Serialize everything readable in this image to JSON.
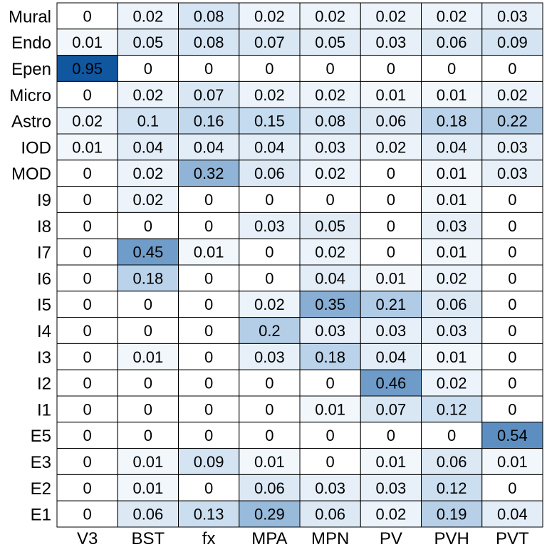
{
  "chart_data": {
    "type": "heatmap",
    "rows": [
      "Mural",
      "Endo",
      "Epen",
      "Micro",
      "Astro",
      "IOD",
      "MOD",
      "I9",
      "I8",
      "I7",
      "I6",
      "I5",
      "I4",
      "I3",
      "I2",
      "I1",
      "E5",
      "E3",
      "E2",
      "E1"
    ],
    "columns": [
      "V3",
      "BST",
      "fx",
      "MPA",
      "MPN",
      "PV",
      "PVH",
      "PVT"
    ],
    "values": [
      [
        "0",
        "0.02",
        "0.08",
        "0.02",
        "0.02",
        "0.02",
        "0.02",
        "0.03"
      ],
      [
        "0.01",
        "0.05",
        "0.08",
        "0.07",
        "0.05",
        "0.03",
        "0.06",
        "0.09"
      ],
      [
        "0.95",
        "0",
        "0",
        "0",
        "0",
        "0",
        "0",
        "0"
      ],
      [
        "0",
        "0.02",
        "0.07",
        "0.02",
        "0.02",
        "0.01",
        "0.01",
        "0.02"
      ],
      [
        "0.02",
        "0.1",
        "0.16",
        "0.15",
        "0.08",
        "0.06",
        "0.18",
        "0.22"
      ],
      [
        "0.01",
        "0.04",
        "0.04",
        "0.04",
        "0.03",
        "0.02",
        "0.04",
        "0.03"
      ],
      [
        "0",
        "0.02",
        "0.32",
        "0.06",
        "0.02",
        "0",
        "0.01",
        "0.03"
      ],
      [
        "0",
        "0.02",
        "0",
        "0",
        "0",
        "0",
        "0.01",
        "0"
      ],
      [
        "0",
        "0",
        "0",
        "0.03",
        "0.05",
        "0",
        "0.03",
        "0"
      ],
      [
        "0",
        "0.45",
        "0.01",
        "0",
        "0.02",
        "0",
        "0.01",
        "0"
      ],
      [
        "0",
        "0.18",
        "0",
        "0",
        "0.04",
        "0.01",
        "0.02",
        "0"
      ],
      [
        "0",
        "0",
        "0",
        "0.02",
        "0.35",
        "0.21",
        "0.06",
        "0"
      ],
      [
        "0",
        "0",
        "0",
        "0.2",
        "0.03",
        "0.03",
        "0.03",
        "0"
      ],
      [
        "0",
        "0.01",
        "0",
        "0.03",
        "0.18",
        "0.04",
        "0.01",
        "0"
      ],
      [
        "0",
        "0",
        "0",
        "0",
        "0",
        "0.46",
        "0.02",
        "0"
      ],
      [
        "0",
        "0",
        "0",
        "0",
        "0.01",
        "0.07",
        "0.12",
        "0"
      ],
      [
        "0",
        "0",
        "0",
        "0",
        "0",
        "0",
        "0",
        "0.54"
      ],
      [
        "0",
        "0.01",
        "0.09",
        "0.01",
        "0",
        "0.01",
        "0.06",
        "0.01"
      ],
      [
        "0",
        "0.01",
        "0",
        "0.06",
        "0.03",
        "0.03",
        "0.12",
        "0"
      ],
      [
        "0",
        "0.06",
        "0.13",
        "0.29",
        "0.06",
        "0.02",
        "0.19",
        "0.04"
      ]
    ],
    "value_range": [
      0,
      1
    ],
    "colormap": {
      "low": "#ffffff",
      "high": "#08519c"
    }
  }
}
